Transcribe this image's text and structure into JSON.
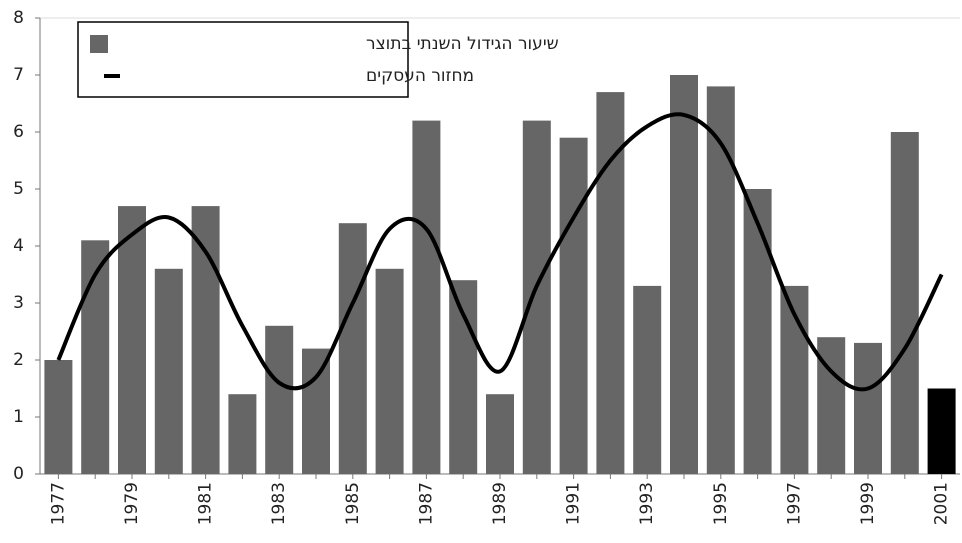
{
  "chart_data": {
    "type": "bar",
    "categories": [
      "1977",
      null,
      "1979",
      null,
      "1981",
      null,
      "1983",
      null,
      "1985",
      null,
      "1987",
      null,
      "1989",
      null,
      "1991",
      null,
      "1993",
      null,
      "1995",
      null,
      "1997",
      null,
      "1999",
      null,
      "2001"
    ],
    "series": [
      {
        "name": "שיעור הגידול השנתי בתוצר",
        "type": "bar",
        "color": "#666666",
        "colors": [
          "#666666",
          "#666666",
          "#666666",
          "#666666",
          "#666666",
          "#666666",
          "#666666",
          "#666666",
          "#666666",
          "#666666",
          "#666666",
          "#666666",
          "#666666",
          "#666666",
          "#666666",
          "#666666",
          "#666666",
          "#666666",
          "#666666",
          "#666666",
          "#666666",
          "#666666",
          "#666666",
          "#666666",
          "#000000"
        ],
        "values": [
          2.0,
          4.1,
          4.7,
          3.6,
          4.7,
          1.4,
          2.6,
          2.2,
          4.4,
          3.6,
          6.2,
          3.4,
          1.4,
          6.2,
          5.9,
          6.7,
          3.3,
          7.0,
          6.8,
          5.0,
          3.3,
          2.4,
          2.3,
          6.0,
          1.5
        ]
      },
      {
        "name": "מחזור העסקים",
        "type": "line",
        "color": "#000000",
        "values": [
          2.0,
          3.5,
          4.2,
          4.5,
          3.9,
          2.6,
          1.6,
          1.7,
          3.0,
          4.3,
          4.3,
          2.8,
          1.8,
          3.3,
          4.5,
          5.5,
          6.1,
          6.3,
          5.8,
          4.4,
          2.8,
          1.8,
          1.5,
          2.2,
          3.5
        ]
      }
    ],
    "ylim": [
      0,
      8
    ],
    "yticks": [
      0,
      1,
      2,
      3,
      4,
      5,
      6,
      7,
      8
    ],
    "grid": false,
    "legend": "top-left"
  }
}
